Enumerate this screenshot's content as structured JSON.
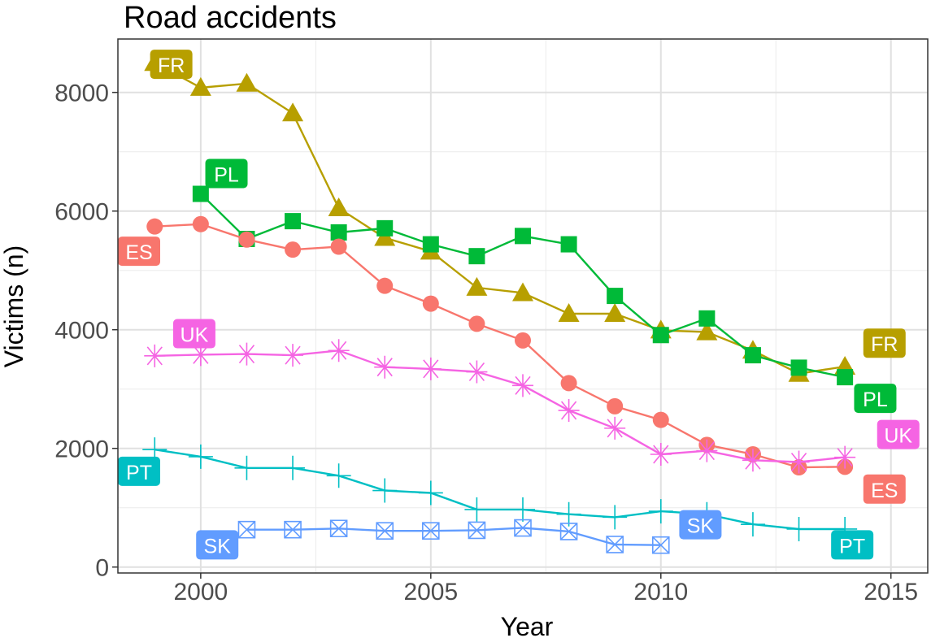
{
  "chart_data": {
    "type": "line",
    "title": "Road accidents",
    "xlabel": "Year",
    "ylabel": "Victims (n)",
    "xlim": [
      1998.2,
      2015.8
    ],
    "ylim": [
      -100,
      8900
    ],
    "x_ticks": [
      2000,
      2005,
      2010,
      2015
    ],
    "y_ticks": [
      0,
      2000,
      4000,
      6000,
      8000
    ],
    "grid": true,
    "legend": "none",
    "series": [
      {
        "name": "FR",
        "color": "#B79F00",
        "marker": "triangle",
        "x": [
          1999,
          2000,
          2001,
          2002,
          2003,
          2004,
          2005,
          2006,
          2007,
          2008,
          2009,
          2010,
          2011,
          2012,
          2013,
          2014
        ],
        "values": [
          8500,
          8080,
          8150,
          7650,
          6050,
          5550,
          5320,
          4710,
          4620,
          4270,
          4270,
          3990,
          3960,
          3650,
          3260,
          3380
        ],
        "labels": [
          {
            "text": "FR",
            "x": 1998.9,
            "y": 8460
          },
          {
            "text": "FR",
            "x": 2014.4,
            "y": 3760
          }
        ]
      },
      {
        "name": "PL",
        "color": "#00BA38",
        "marker": "square",
        "x": [
          2000,
          2001,
          2002,
          2003,
          2004,
          2005,
          2006,
          2007,
          2008,
          2009,
          2010,
          2011,
          2012,
          2013,
          2014
        ],
        "values": [
          6290,
          5530,
          5830,
          5640,
          5710,
          5440,
          5240,
          5580,
          5440,
          4570,
          3910,
          4190,
          3570,
          3360,
          3200
        ],
        "labels": [
          {
            "text": "PL",
            "x": 2000.1,
            "y": 6620
          },
          {
            "text": "PL",
            "x": 2014.2,
            "y": 2830
          }
        ]
      },
      {
        "name": "ES",
        "color": "#F8766D",
        "marker": "circle",
        "x": [
          1999,
          2000,
          2001,
          2002,
          2003,
          2004,
          2005,
          2006,
          2007,
          2008,
          2009,
          2010,
          2011,
          2012,
          2013,
          2014
        ],
        "values": [
          5740,
          5780,
          5520,
          5350,
          5400,
          4740,
          4440,
          4100,
          3820,
          3100,
          2710,
          2480,
          2060,
          1900,
          1680,
          1690
        ],
        "labels": [
          {
            "text": "ES",
            "x": 1998.2,
            "y": 5310
          },
          {
            "text": "ES",
            "x": 2014.4,
            "y": 1300
          }
        ]
      },
      {
        "name": "UK",
        "color": "#F564E3",
        "marker": "asterisk",
        "x": [
          1999,
          2000,
          2001,
          2002,
          2003,
          2004,
          2005,
          2006,
          2007,
          2008,
          2009,
          2010,
          2011,
          2012,
          2013,
          2014
        ],
        "values": [
          3560,
          3580,
          3590,
          3570,
          3650,
          3370,
          3340,
          3290,
          3060,
          2640,
          2340,
          1900,
          1960,
          1800,
          1770,
          1850
        ],
        "labels": [
          {
            "text": "UK",
            "x": 1999.4,
            "y": 3920
          },
          {
            "text": "UK",
            "x": 2014.7,
            "y": 2220
          }
        ]
      },
      {
        "name": "PT",
        "color": "#00BFC4",
        "marker": "plus",
        "x": [
          1999,
          2000,
          2001,
          2002,
          2003,
          2004,
          2005,
          2006,
          2007,
          2008,
          2009,
          2010,
          2011,
          2012,
          2013,
          2014
        ],
        "values": [
          1980,
          1860,
          1670,
          1670,
          1540,
          1290,
          1250,
          970,
          970,
          890,
          840,
          940,
          890,
          720,
          640,
          640
        ],
        "labels": [
          {
            "text": "PT",
            "x": 1998.2,
            "y": 1600
          },
          {
            "text": "PT",
            "x": 2013.7,
            "y": 360
          }
        ]
      },
      {
        "name": "SK",
        "color": "#619CFF",
        "marker": "square-x",
        "x": [
          2001,
          2002,
          2003,
          2004,
          2005,
          2006,
          2007,
          2008,
          2009,
          2010
        ],
        "values": [
          630,
          630,
          650,
          610,
          610,
          620,
          660,
          600,
          380,
          370
        ],
        "labels": [
          {
            "text": "SK",
            "x": 1999.9,
            "y": 360
          },
          {
            "text": "SK",
            "x": 2010.4,
            "y": 700
          }
        ]
      }
    ]
  }
}
